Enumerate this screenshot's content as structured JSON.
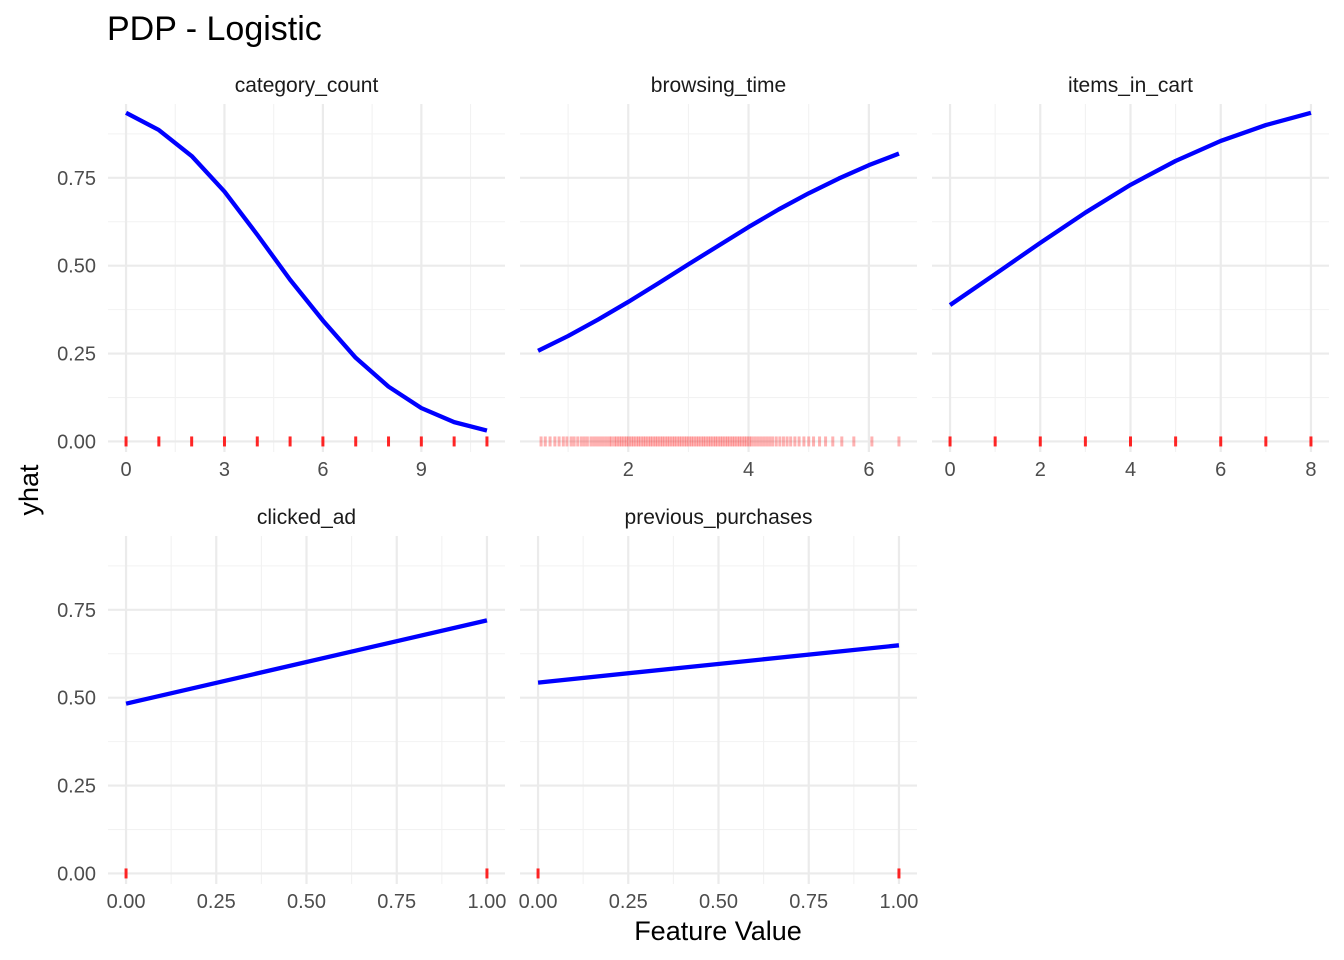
{
  "chart_data": {
    "type": "line",
    "title": "PDP - Logistic",
    "xlabel": "Feature Value",
    "ylabel": "yhat",
    "ylim": [
      -0.03,
      0.96
    ],
    "yticks": [
      0,
      0.25,
      0.5,
      0.75
    ],
    "ytick_labels": [
      "0.00",
      "0.25",
      "0.50",
      "0.75"
    ],
    "grid": true,
    "line_color": "#0000ff",
    "rug_color": "#ff0000",
    "panels": [
      {
        "name": "category_count",
        "xlim": [
          -0.55,
          11.55
        ],
        "xticks": [
          0,
          3,
          6,
          9
        ],
        "xtick_labels": [
          "0",
          "3",
          "6",
          "9"
        ],
        "x": [
          0,
          1,
          2,
          3,
          4,
          5,
          6,
          7,
          8,
          9,
          10,
          11
        ],
        "y": [
          0.935,
          0.886,
          0.812,
          0.711,
          0.588,
          0.46,
          0.344,
          0.238,
          0.156,
          0.095,
          0.055,
          0.031
        ],
        "rug": [
          0,
          1,
          2,
          3,
          4,
          5,
          6,
          7,
          8,
          9,
          10,
          11
        ]
      },
      {
        "name": "browsing_time",
        "xlim": [
          0.2,
          6.8
        ],
        "xticks": [
          2,
          4,
          6
        ],
        "xtick_labels": [
          "2",
          "4",
          "6"
        ],
        "x": [
          0.5,
          1.0,
          1.5,
          2.0,
          2.5,
          3.0,
          3.5,
          4.0,
          4.5,
          5.0,
          5.5,
          6.0,
          6.5
        ],
        "y": [
          0.258,
          0.3,
          0.347,
          0.397,
          0.45,
          0.504,
          0.557,
          0.61,
          0.66,
          0.706,
          0.748,
          0.786,
          0.819
        ],
        "rug": [
          0.55,
          0.62,
          0.7,
          0.78,
          0.85,
          0.92,
          0.98,
          1.05,
          1.1,
          1.16,
          1.22,
          1.27,
          1.32,
          1.38,
          1.43,
          1.48,
          1.53,
          1.58,
          1.63,
          1.68,
          1.72,
          1.77,
          1.81,
          1.85,
          1.89,
          1.93,
          1.97,
          2.01,
          2.05,
          2.09,
          2.13,
          2.17,
          2.21,
          2.25,
          2.29,
          2.33,
          2.37,
          2.41,
          2.45,
          2.49,
          2.53,
          2.57,
          2.61,
          2.65,
          2.69,
          2.73,
          2.77,
          2.81,
          2.85,
          2.89,
          2.93,
          2.97,
          3.01,
          3.05,
          3.09,
          3.13,
          3.17,
          3.21,
          3.25,
          3.29,
          3.33,
          3.37,
          3.41,
          3.45,
          3.49,
          3.53,
          3.57,
          3.61,
          3.65,
          3.69,
          3.73,
          3.77,
          3.81,
          3.85,
          3.89,
          3.93,
          3.97,
          4.01,
          4.05,
          4.1,
          4.15,
          4.2,
          4.25,
          4.3,
          4.35,
          4.4,
          4.46,
          4.52,
          4.58,
          4.64,
          4.7,
          4.77,
          4.84,
          4.92,
          5.0,
          5.08,
          5.18,
          5.28,
          5.4,
          5.55,
          5.75,
          6.05,
          6.5
        ]
      },
      {
        "name": "items_in_cart",
        "xlim": [
          -0.4,
          8.4
        ],
        "xticks": [
          0,
          2,
          4,
          6,
          8
        ],
        "xtick_labels": [
          "0",
          "2",
          "4",
          "6",
          "8"
        ],
        "x": [
          0,
          1,
          2,
          3,
          4,
          5,
          6,
          7,
          8
        ],
        "y": [
          0.388,
          0.476,
          0.565,
          0.651,
          0.73,
          0.798,
          0.855,
          0.9,
          0.935
        ],
        "rug": [
          0,
          1,
          2,
          3,
          4,
          5,
          6,
          7,
          8
        ]
      },
      {
        "name": "clicked_ad",
        "xlim": [
          -0.05,
          1.05
        ],
        "xticks": [
          0,
          0.25,
          0.5,
          0.75,
          1
        ],
        "xtick_labels": [
          "0.00",
          "0.25",
          "0.50",
          "0.75",
          "1.00"
        ],
        "x": [
          0,
          1
        ],
        "y": [
          0.483,
          0.72
        ],
        "rug": [
          0,
          1
        ]
      },
      {
        "name": "previous_purchases",
        "xlim": [
          -0.05,
          1.05
        ],
        "xticks": [
          0,
          0.25,
          0.5,
          0.75,
          1
        ],
        "xtick_labels": [
          "0.00",
          "0.25",
          "0.50",
          "0.75",
          "1.00"
        ],
        "x": [
          0,
          1
        ],
        "y": [
          0.543,
          0.649
        ],
        "rug": [
          0,
          1
        ]
      }
    ]
  }
}
